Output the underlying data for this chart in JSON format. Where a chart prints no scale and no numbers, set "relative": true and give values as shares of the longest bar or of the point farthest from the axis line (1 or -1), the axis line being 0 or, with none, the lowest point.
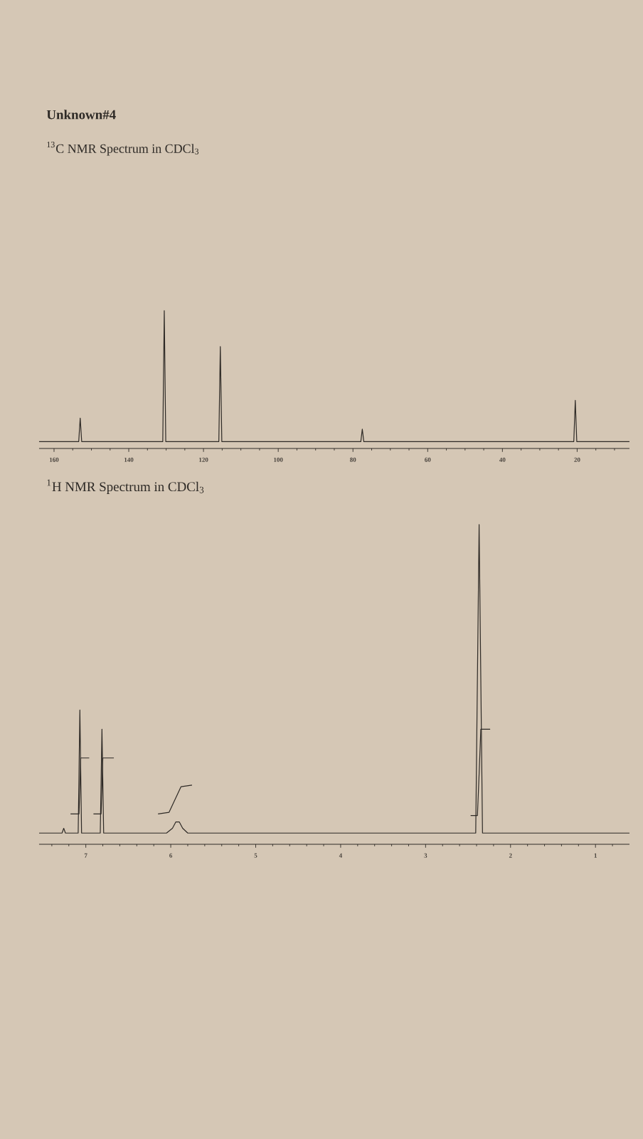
{
  "chart_data": [
    {
      "type": "line",
      "title": "Unknown#4",
      "subtitle": "$^{13}$C NMR Spectrum in CDCl$_{3}$",
      "relative": true,
      "xlim": [
        164,
        6
      ],
      "xticks": [
        160,
        {
          "value": 155,
          "label": null
        },
        {
          "value": 150,
          "label": null
        },
        {
          "value": 145,
          "label": null
        },
        140,
        {
          "value": 135,
          "label": null
        },
        {
          "value": 130,
          "label": null
        },
        {
          "value": 125,
          "label": null
        },
        120,
        {
          "value": 115,
          "label": null
        },
        {
          "value": 110,
          "label": null
        },
        {
          "value": 105,
          "label": null
        },
        100,
        {
          "value": 95,
          "label": null
        },
        {
          "value": 90,
          "label": null
        },
        {
          "value": 85,
          "label": null
        },
        80,
        {
          "value": 75,
          "label": null
        },
        {
          "value": 70,
          "label": null
        },
        {
          "value": 65,
          "label": null
        },
        60,
        {
          "value": 55,
          "label": null
        },
        {
          "value": 50,
          "label": null
        },
        {
          "value": 45,
          "label": null
        },
        40,
        {
          "value": 35,
          "label": null
        },
        {
          "value": 30,
          "label": null
        },
        {
          "value": 25,
          "label": null
        },
        20,
        {
          "value": 15,
          "label": null
        },
        {
          "value": 10,
          "label": null
        }
      ],
      "series": [
        {
          "color": "#2e2a26",
          "x": [
            164,
            153.4,
            153,
            152.6,
            130.9,
            130.5,
            130.1,
            115.9,
            115.5,
            115.1,
            77.9,
            77.5,
            77.1,
            20.9,
            20.5,
            20.1,
            6
          ],
          "values": [
            0.05,
            0.05,
            0.22,
            0.05,
            0.05,
            1,
            0.05,
            0.05,
            0.74,
            0.05,
            0.05,
            0.14,
            0.05,
            0.05,
            0.35,
            0.05,
            0.05
          ]
        }
      ]
    },
    {
      "type": "line",
      "title": "$^{1}$H NMR Spectrum in CDCl$_{3}$",
      "relative": true,
      "xlim": [
        7.55,
        0.6
      ],
      "xticks": [
        {
          "value": 7.4,
          "label": null
        },
        {
          "value": 7.2,
          "label": null
        },
        7,
        {
          "value": 6.8,
          "label": null
        },
        {
          "value": 6.6,
          "label": null
        },
        {
          "value": 6.4,
          "label": null
        },
        {
          "value": 6.2,
          "label": null
        },
        6,
        {
          "value": 5.8,
          "label": null
        },
        {
          "value": 5.6,
          "label": null
        },
        {
          "value": 5.4,
          "label": null
        },
        {
          "value": 5.2,
          "label": null
        },
        5,
        {
          "value": 4.8,
          "label": null
        },
        {
          "value": 4.6,
          "label": null
        },
        {
          "value": 4.4,
          "label": null
        },
        {
          "value": 4.2,
          "label": null
        },
        4,
        {
          "value": 3.8,
          "label": null
        },
        {
          "value": 3.6,
          "label": null
        },
        {
          "value": 3.4,
          "label": null
        },
        {
          "value": 3.2,
          "label": null
        },
        3,
        {
          "value": 2.8,
          "label": null
        },
        {
          "value": 2.6,
          "label": null
        },
        {
          "value": 2.4,
          "label": null
        },
        {
          "value": 2.2,
          "label": null
        },
        2,
        {
          "value": 1.8,
          "label": null
        },
        {
          "value": 1.6,
          "label": null
        },
        {
          "value": 1.4,
          "label": null
        },
        {
          "value": 1.2,
          "label": null
        },
        1,
        {
          "value": 0.8,
          "label": null
        }
      ],
      "series": [
        {
          "color": "#2e2a26",
          "x": [
            7.55,
            7.28,
            7.26,
            7.24,
            7.09,
            7.07,
            7.05,
            6.83,
            6.81,
            6.79,
            6.05,
            5.98,
            5.94,
            5.9,
            5.86,
            5.8,
            2.41,
            2.37,
            2.33,
            0.6
          ],
          "values": [
            0.035,
            0.035,
            0.05,
            0.035,
            0.035,
            0.42,
            0.035,
            0.035,
            0.36,
            0.035,
            0.035,
            0.05,
            0.07,
            0.07,
            0.05,
            0.035,
            0.035,
            1,
            0.035,
            0.035
          ]
        },
        {
          "color": "#2e2a26",
          "x": [
            7.18,
            7.08,
            7.07,
            7.06,
            6.96,
            6.94,
            6.91,
            6.82,
            6.81,
            6.8,
            6.67,
            6.4,
            6.15,
            6.02,
            5.95,
            5.88,
            5.75,
            4,
            2.47,
            2.39,
            2.37,
            2.35,
            2.24
          ],
          "values": [
            0.095,
            0.095,
            0.18,
            0.27,
            0.27,
            null,
            0.095,
            0.095,
            0.18,
            0.27,
            0.27,
            null,
            0.095,
            0.1,
            0.14,
            0.18,
            0.185,
            null,
            0.09,
            0.09,
            0.22,
            0.36,
            0.36
          ]
        }
      ]
    }
  ]
}
